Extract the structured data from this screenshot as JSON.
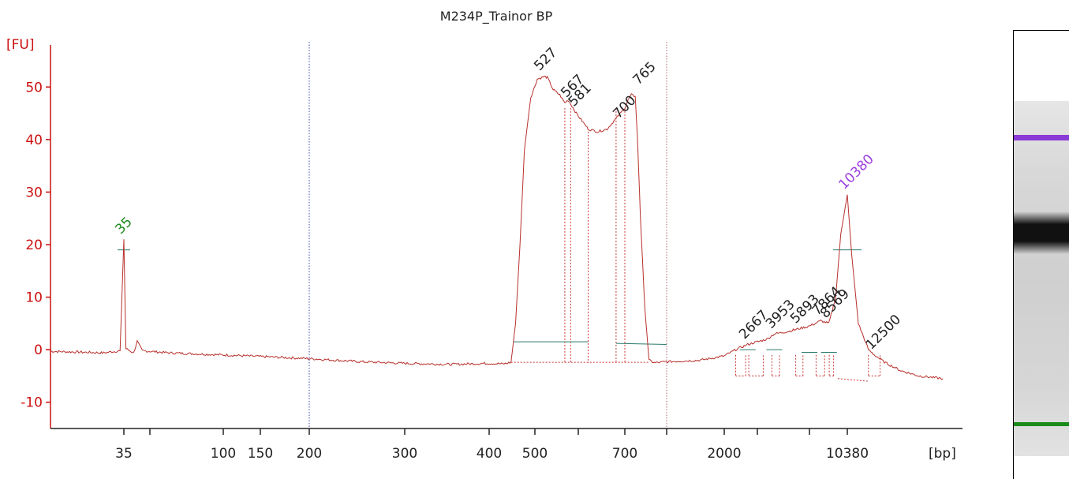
{
  "chart_data": {
    "type": "line",
    "title": "M234P_Trainor BP",
    "xlabel": "[bp]",
    "ylabel": "[FU]",
    "ylim": [
      -15,
      58
    ],
    "yticks": [
      -10,
      0,
      10,
      20,
      30,
      40,
      50
    ],
    "xscale": "categorical",
    "xticks": [
      {
        "label": "35",
        "pos": 35
      },
      {
        "label": "",
        "pos": 50
      },
      {
        "label": "100",
        "pos": 100
      },
      {
        "label": "150",
        "pos": 150
      },
      {
        "label": "200",
        "pos": 200
      },
      {
        "label": "300",
        "pos": 300
      },
      {
        "label": "400",
        "pos": 400
      },
      {
        "label": "500",
        "pos": 500
      },
      {
        "label": "",
        "pos": 600
      },
      {
        "label": "700",
        "pos": 700
      },
      {
        "label": "",
        "pos": 1000
      },
      {
        "label": "2000",
        "pos": 2000
      },
      {
        "label": "",
        "pos": 3000
      },
      {
        "label": "",
        "pos": 7000
      },
      {
        "label": "10380",
        "pos": 10380
      }
    ],
    "series": [
      {
        "line_color": "#b8302c",
        "points": [
          [
            20,
            -0.3
          ],
          [
            30,
            -0.6
          ],
          [
            34,
            -0.2
          ],
          [
            35,
            21
          ],
          [
            36,
            0.2
          ],
          [
            40,
            -0.6
          ],
          [
            42,
            1.6
          ],
          [
            45,
            -0.2
          ],
          [
            60,
            -0.6
          ],
          [
            100,
            -1.0
          ],
          [
            150,
            -1.3
          ],
          [
            200,
            -1.7
          ],
          [
            250,
            -2.3
          ],
          [
            300,
            -2.6
          ],
          [
            350,
            -2.8
          ],
          [
            400,
            -2.6
          ],
          [
            430,
            -2.7
          ],
          [
            445,
            -2.4
          ],
          [
            455,
            5
          ],
          [
            465,
            20
          ],
          [
            475,
            38
          ],
          [
            490,
            48
          ],
          [
            505,
            51.5
          ],
          [
            520,
            52
          ],
          [
            527,
            51.8
          ],
          [
            540,
            49.5
          ],
          [
            555,
            48.5
          ],
          [
            567,
            47
          ],
          [
            575,
            47.5
          ],
          [
            581,
            46.8
          ],
          [
            595,
            45
          ],
          [
            620,
            42
          ],
          [
            640,
            41.5
          ],
          [
            660,
            42
          ],
          [
            680,
            44
          ],
          [
            700,
            46
          ],
          [
            720,
            47.5
          ],
          [
            740,
            48.5
          ],
          [
            765,
            48.2
          ],
          [
            780,
            40
          ],
          [
            800,
            25
          ],
          [
            830,
            8
          ],
          [
            860,
            -2
          ],
          [
            900,
            -2.5
          ],
          [
            1000,
            -2.3
          ],
          [
            1500,
            -2
          ],
          [
            2000,
            -1.2
          ],
          [
            2300,
            0
          ],
          [
            2667,
            1
          ],
          [
            3500,
            2
          ],
          [
            3953,
            3
          ],
          [
            5000,
            3.5
          ],
          [
            5893,
            4
          ],
          [
            7000,
            4.5
          ],
          [
            7864,
            5.5
          ],
          [
            8569,
            5
          ],
          [
            9200,
            10
          ],
          [
            9700,
            22
          ],
          [
            10380,
            29.5
          ],
          [
            10700,
            18
          ],
          [
            11200,
            5
          ],
          [
            12000,
            0
          ],
          [
            12500,
            -1
          ],
          [
            13500,
            -2.5
          ],
          [
            15000,
            -4
          ],
          [
            17000,
            -5
          ],
          [
            20000,
            -5.5
          ]
        ]
      }
    ],
    "peaks": [
      {
        "label": "35",
        "x": 35,
        "y": 21,
        "color": "#1e8a1e"
      },
      {
        "label": "527",
        "x": 527,
        "y": 51.8,
        "color": "#222222"
      },
      {
        "label": "567",
        "x": 567,
        "y": 47,
        "color": "#222222"
      },
      {
        "label": "581",
        "x": 581,
        "y": 46.8,
        "color": "#222222"
      },
      {
        "label": "700",
        "x": 700,
        "y": 46,
        "color": "#222222"
      },
      {
        "label": "765",
        "x": 765,
        "y": 48.2,
        "color": "#222222"
      },
      {
        "label": "2667",
        "x": 2667,
        "y": 1,
        "color": "#222222"
      },
      {
        "label": "3953",
        "x": 3953,
        "y": 3,
        "color": "#222222"
      },
      {
        "label": "5893",
        "x": 5893,
        "y": 4,
        "color": "#222222"
      },
      {
        "label": "7864",
        "x": 7864,
        "y": 5.5,
        "color": "#222222"
      },
      {
        "label": "8569",
        "x": 8569,
        "y": 5,
        "color": "#222222"
      },
      {
        "label": "10380",
        "x": 10380,
        "y": 29.5,
        "color": "#9a3ee0"
      },
      {
        "label": "12500",
        "x": 12500,
        "y": -1,
        "color": "#222222"
      }
    ],
    "region_markers": [
      200,
      1000
    ],
    "grid": false,
    "gel_lane": {
      "bands": [
        {
          "position": "upper",
          "color": "#8a3ad6"
        },
        {
          "position": "middle",
          "color": "#111111"
        },
        {
          "position": "lower",
          "color": "#1a8a1a"
        }
      ]
    }
  }
}
